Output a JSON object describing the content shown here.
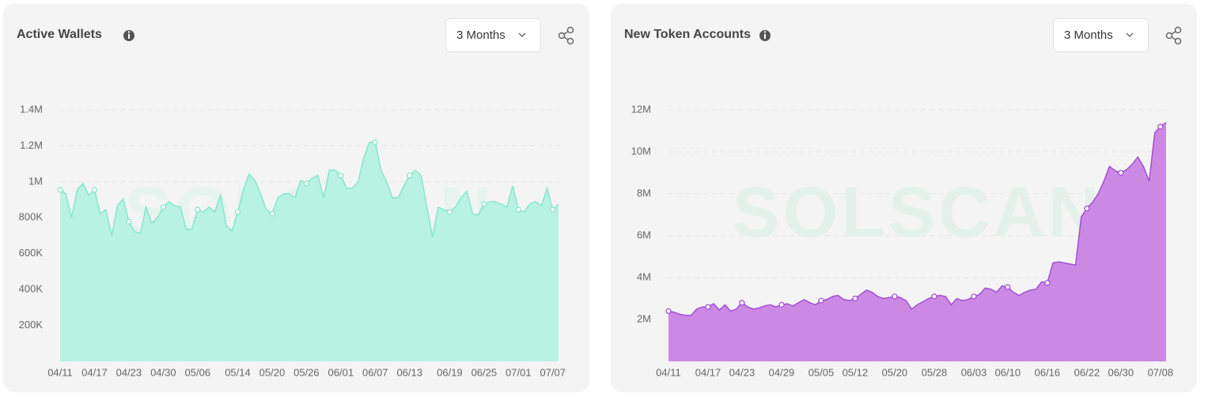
{
  "chart_data": [
    {
      "type": "area",
      "title": "Active Wallets",
      "range_selector": "3 Months",
      "watermark": "SOLSCAN",
      "color": "#b4f1e1",
      "line_color": "#86e6cb",
      "categories": [
        "04/11",
        null,
        null,
        null,
        null,
        null,
        "04/17",
        null,
        null,
        null,
        null,
        null,
        "04/23",
        null,
        null,
        null,
        null,
        null,
        "04/30",
        null,
        null,
        null,
        null,
        null,
        "05/06",
        null,
        null,
        null,
        null,
        null,
        null,
        "05/14",
        null,
        null,
        null,
        null,
        null,
        "05/20",
        null,
        null,
        null,
        null,
        null,
        "05/26",
        null,
        null,
        null,
        null,
        null,
        "06/01",
        null,
        null,
        null,
        null,
        null,
        "06/07",
        null,
        null,
        null,
        null,
        null,
        "06/13",
        null,
        null,
        null,
        null,
        null,
        null,
        "06/19",
        null,
        null,
        null,
        null,
        null,
        "06/25",
        null,
        null,
        null,
        null,
        null,
        "07/01",
        null,
        null,
        null,
        null,
        null,
        "07/07",
        null
      ],
      "values": [
        955000,
        933000,
        801000,
        955000,
        991000,
        925000,
        955000,
        823000,
        845000,
        700000,
        867000,
        903000,
        779000,
        722000,
        713000,
        859000,
        770000,
        801000,
        859000,
        889000,
        867000,
        859000,
        735000,
        735000,
        845000,
        832000,
        859000,
        832000,
        925000,
        757000,
        726000,
        832000,
        955000,
        1043000,
        1008000,
        933000,
        845000,
        823000,
        911000,
        933000,
        933000,
        911000,
        1008000,
        991000,
        1021000,
        1035000,
        911000,
        1065000,
        1065000,
        1035000,
        964000,
        964000,
        999000,
        1132000,
        1220000,
        1220000,
        1065000,
        999000,
        911000,
        911000,
        977000,
        1035000,
        1065000,
        1035000,
        867000,
        691000,
        859000,
        845000,
        832000,
        859000,
        911000,
        947000,
        823000,
        815000,
        876000,
        889000,
        889000,
        876000,
        859000,
        977000,
        845000,
        832000,
        876000,
        889000,
        867000,
        964000,
        845000,
        876000
      ],
      "ylim": [
        0,
        1400000
      ],
      "yticks": [
        {
          "value": 200000,
          "label": "200K"
        },
        {
          "value": 400000,
          "label": "400K"
        },
        {
          "value": 600000,
          "label": "600K"
        },
        {
          "value": 800000,
          "label": "800K"
        },
        {
          "value": 1000000,
          "label": "1M"
        },
        {
          "value": 1200000,
          "label": "1.2M"
        },
        {
          "value": 1400000,
          "label": "1.4M"
        }
      ],
      "grid": true
    },
    {
      "type": "area",
      "title": "New Token Accounts",
      "range_selector": "3 Months",
      "watermark": "SOLSCAN",
      "color": "#c983e3",
      "line_color": "#a24fd3",
      "categories": [
        "04/11",
        null,
        null,
        null,
        null,
        null,
        null,
        "04/17",
        null,
        null,
        null,
        null,
        null,
        "04/23",
        null,
        null,
        null,
        null,
        null,
        null,
        "04/29",
        null,
        null,
        null,
        null,
        null,
        null,
        "05/05",
        null,
        null,
        null,
        null,
        null,
        "05/12",
        null,
        null,
        null,
        null,
        null,
        null,
        "05/20",
        null,
        null,
        null,
        null,
        null,
        null,
        "05/28",
        null,
        null,
        null,
        null,
        null,
        null,
        "06/03",
        null,
        null,
        null,
        null,
        null,
        "06/10",
        null,
        null,
        null,
        null,
        null,
        null,
        "06/16",
        null,
        null,
        null,
        null,
        null,
        null,
        "06/22",
        null,
        null,
        null,
        null,
        null,
        "06/30",
        null,
        null,
        null,
        null,
        null,
        null,
        "07/08",
        null
      ],
      "values": [
        2400000,
        2350000,
        2250000,
        2200000,
        2200000,
        2500000,
        2600000,
        2600000,
        2750000,
        2450000,
        2700000,
        2400000,
        2500000,
        2800000,
        2600000,
        2500000,
        2550000,
        2650000,
        2700000,
        2600000,
        2700000,
        2750000,
        2650000,
        2800000,
        2950000,
        2800000,
        2700000,
        2900000,
        2950000,
        3100000,
        3150000,
        2950000,
        2900000,
        3000000,
        3200000,
        3400000,
        3300000,
        3100000,
        3000000,
        3050000,
        3100000,
        3050000,
        2900000,
        2500000,
        2700000,
        2850000,
        3000000,
        3100000,
        3150000,
        3100000,
        2700000,
        3000000,
        2900000,
        2950000,
        3100000,
        3200000,
        3500000,
        3450000,
        3300000,
        3600000,
        3550000,
        3300000,
        3150000,
        3300000,
        3400000,
        3450000,
        3800000,
        3750000,
        4700000,
        4750000,
        4700000,
        4650000,
        4600000,
        6900000,
        7300000,
        7600000,
        8000000,
        8600000,
        9300000,
        9100000,
        9000000,
        9150000,
        9400000,
        9750000,
        9300000,
        8600000,
        10900000,
        11200000,
        11400000
      ],
      "ylim": [
        0,
        12000000
      ],
      "yticks": [
        {
          "value": 2000000,
          "label": "2M"
        },
        {
          "value": 4000000,
          "label": "4M"
        },
        {
          "value": 6000000,
          "label": "6M"
        },
        {
          "value": 8000000,
          "label": "8M"
        },
        {
          "value": 10000000,
          "label": "10M"
        },
        {
          "value": 12000000,
          "label": "12M"
        }
      ],
      "grid": true
    }
  ]
}
